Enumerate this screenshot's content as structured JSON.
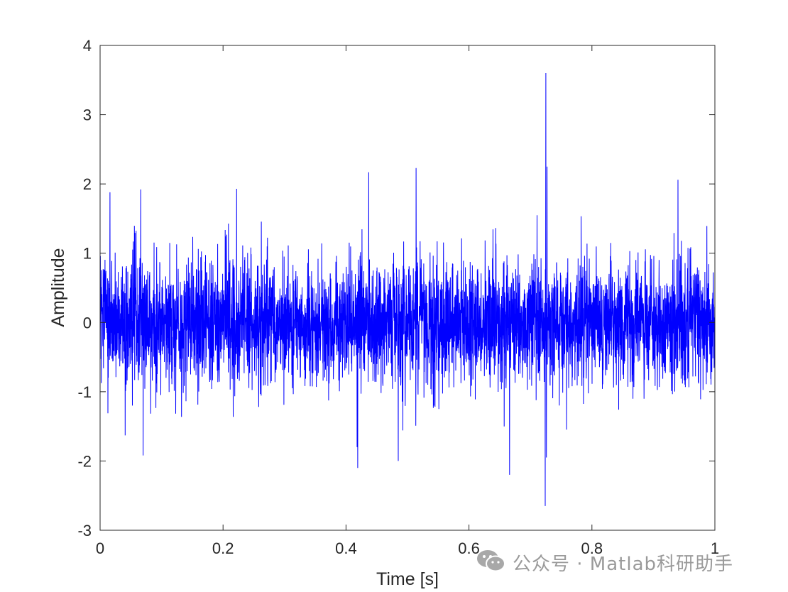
{
  "chart_data": {
    "type": "line",
    "title": "",
    "xlabel": "Time [s]",
    "ylabel": "Amplitude",
    "xlim": [
      0,
      1
    ],
    "ylim": [
      -3,
      4
    ],
    "xticks": [
      0,
      0.2,
      0.4,
      0.6,
      0.8,
      1
    ],
    "xtick_labels": [
      "0",
      "0.2",
      "0.4",
      "0.6",
      "0.8",
      "1"
    ],
    "yticks": [
      -3,
      -2,
      -1,
      0,
      1,
      2,
      3,
      4
    ],
    "ytick_labels": [
      "-3",
      "-2",
      "-1",
      "0",
      "1",
      "2",
      "3",
      "4"
    ],
    "grid": false,
    "legend": "none",
    "line_color": "#0000ff",
    "signal": {
      "description": "dense noisy vibration signal, approx. zero-mean, core band about ±0.8",
      "noise_std": 0.45,
      "n_samples": 4000
    },
    "notable_points": [
      {
        "x": 0.016,
        "y": 1.88
      },
      {
        "x": 0.066,
        "y": 1.92
      },
      {
        "x": 0.222,
        "y": 1.93
      },
      {
        "x": 0.437,
        "y": 2.17
      },
      {
        "x": 0.514,
        "y": 2.23
      },
      {
        "x": 0.725,
        "y": 3.6
      },
      {
        "x": 0.727,
        "y": 2.25
      },
      {
        "x": 0.94,
        "y": 2.06
      },
      {
        "x": 0.07,
        "y": -1.92
      },
      {
        "x": 0.418,
        "y": -1.8
      },
      {
        "x": 0.419,
        "y": -2.1
      },
      {
        "x": 0.485,
        "y": -2.0
      },
      {
        "x": 0.666,
        "y": -2.2
      },
      {
        "x": 0.724,
        "y": -2.65
      },
      {
        "x": 0.726,
        "y": -1.95
      }
    ]
  },
  "watermark": {
    "text": "公众号 · Matlab科研助手",
    "icon": "wechat-icon"
  }
}
